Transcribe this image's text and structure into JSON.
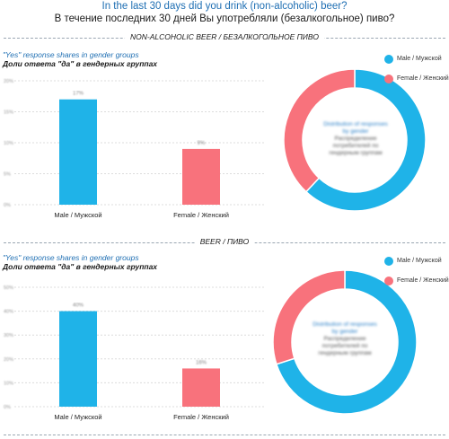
{
  "header": {
    "title_en": "In the last 30 days did you drink (non-alcoholic) beer?",
    "title_ru": "В течение последних 30 дней Вы употребляли (безалкогольное) пиво?"
  },
  "colors": {
    "male": "#1fb3e8",
    "female": "#f8727c",
    "title_blue": "#1f6fb3"
  },
  "sections": [
    {
      "heading": "NON-ALCOHOLIC BEER / БЕЗАЛКОГОЛЬНОЕ ПИВО",
      "subtitle_en": "\"Yes\" response shares in gender groups",
      "subtitle_ru": "Доли ответа \"да\" в гендерных группах",
      "legend": [
        "Male / Мужской",
        "Female / Женский"
      ],
      "donut_text_1": "Distribution of responses by gender",
      "donut_text_2": "Распределение потребителей по гендерным группам"
    },
    {
      "heading": "BEER / ПИВО",
      "subtitle_en": "\"Yes\" response shares in gender groups",
      "subtitle_ru": "Доли ответа \"да\" в гендерных группах",
      "legend": [
        "Male / Мужской",
        "Female / Женский"
      ],
      "donut_text_1": "Distribution of responses by gender",
      "donut_text_2": "Распределение потребителей по гендерным группам"
    }
  ],
  "chart_data": [
    {
      "type": "bar",
      "categories": [
        "Male / Мужской",
        "Female / Женский"
      ],
      "values": [
        17,
        9
      ],
      "ylim": [
        0,
        20
      ],
      "yticks": [
        0,
        5,
        10,
        15,
        20
      ]
    },
    {
      "type": "pie",
      "labels": [
        "Male / Мужской",
        "Female / Женский"
      ],
      "values": [
        62,
        38
      ]
    },
    {
      "type": "bar",
      "categories": [
        "Male / Мужской",
        "Female / Женский"
      ],
      "values": [
        40,
        16
      ],
      "ylim": [
        0,
        50
      ],
      "yticks": [
        0,
        10,
        20,
        30,
        40,
        50
      ]
    },
    {
      "type": "pie",
      "labels": [
        "Male / Мужской",
        "Female / Женский"
      ],
      "values": [
        70,
        30
      ]
    }
  ]
}
